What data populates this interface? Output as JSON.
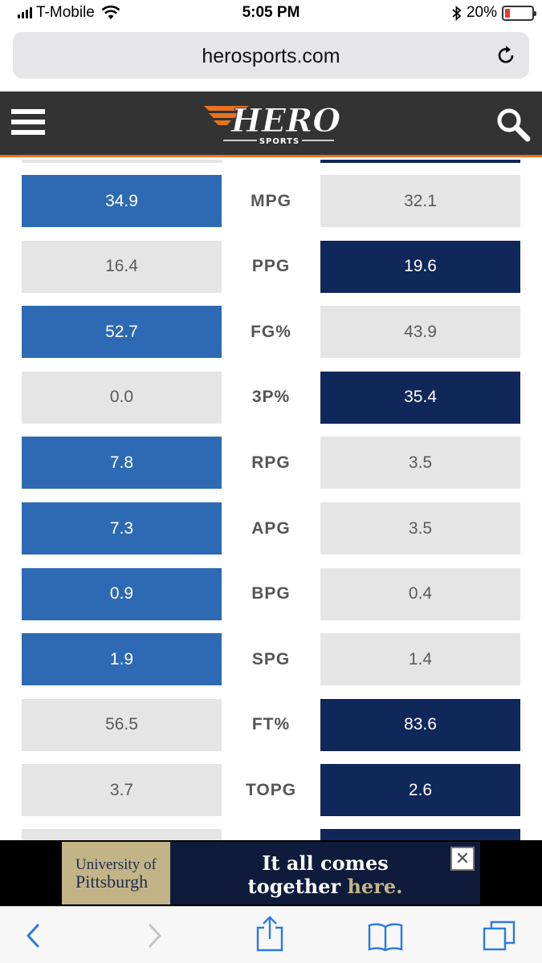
{
  "status_bar": {
    "carrier": "T-Mobile",
    "time": "5:05 PM",
    "battery": "20%",
    "battery_level": 0.2,
    "battery_color": "#e53b30"
  },
  "browser": {
    "url": "herosports.com",
    "reload_icon": "reload-icon"
  },
  "site": {
    "logo_text": "HERO",
    "logo_subtext": "SPORTS",
    "accent": "#e8731e",
    "menu_icon": "hamburger-icon",
    "search_icon": "search-icon"
  },
  "colors": {
    "left_highlight": "#2d6ab3",
    "right_highlight": "#10275a",
    "neutral": "#e5e5e5"
  },
  "stats": [
    {
      "label": "MPG",
      "left": "34.9",
      "right": "32.1",
      "winner": "left"
    },
    {
      "label": "PPG",
      "left": "16.4",
      "right": "19.6",
      "winner": "right"
    },
    {
      "label": "FG%",
      "left": "52.7",
      "right": "43.9",
      "winner": "left"
    },
    {
      "label": "3P%",
      "left": "0.0",
      "right": "35.4",
      "winner": "right"
    },
    {
      "label": "RPG",
      "left": "7.8",
      "right": "3.5",
      "winner": "left"
    },
    {
      "label": "APG",
      "left": "7.3",
      "right": "3.5",
      "winner": "left"
    },
    {
      "label": "BPG",
      "left": "0.9",
      "right": "0.4",
      "winner": "left"
    },
    {
      "label": "SPG",
      "left": "1.9",
      "right": "1.4",
      "winner": "left"
    },
    {
      "label": "FT%",
      "left": "56.5",
      "right": "83.6",
      "winner": "right"
    },
    {
      "label": "TOPG",
      "left": "3.7",
      "right": "2.6",
      "winner": "right"
    }
  ],
  "ad": {
    "brand_line1": "University of",
    "brand_line2": "Pittsburgh",
    "headline_line1": "It all comes",
    "headline_line2_a": "together ",
    "headline_line2_b": "here.",
    "close_label": "✕"
  },
  "toolbar": {
    "items": [
      "back-icon",
      "forward-icon",
      "share-icon",
      "bookmarks-icon",
      "tabs-icon"
    ]
  }
}
